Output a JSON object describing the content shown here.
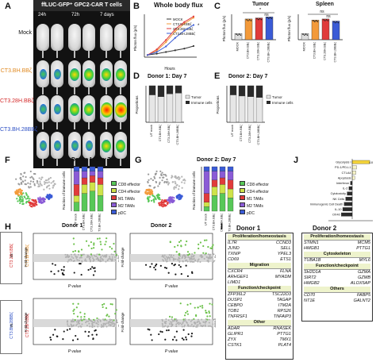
{
  "panels": {
    "A": {
      "label": "A",
      "title": "ffLUC-GFP⁺ GPC2-CAR T cells",
      "timepoints": [
        "24h",
        "72h",
        "7 days"
      ],
      "rows": [
        "Mock",
        "CT3.BH.BBζ",
        "CT3.28H.BBζ",
        "CT3.BH.28BBζ"
      ]
    },
    "B": {
      "label": "B",
      "title": "Whole body flux",
      "ylabel": "Photon flux (p/s)",
      "xlabel": "Hours"
    },
    "C": {
      "label": "C",
      "tumor_title": "Tumor",
      "spleen_title": "Spleen",
      "ylabel": "Photon flux (p/s)",
      "ns1": "ns",
      "ns2": "ns",
      "ns3": "ns",
      "star": "*"
    },
    "D": {
      "label": "D",
      "title": "Donor 1: Day 7",
      "ylabel": "Proportions",
      "legend": [
        "Tumor",
        "Immune cells"
      ]
    },
    "E": {
      "label": "E",
      "title": "Donor 2: Day 7",
      "ylabel": "Proportions",
      "legend": [
        "Tumor",
        "Immune cells"
      ]
    },
    "F": {
      "label": "F",
      "title": "Donor 1: Day 7",
      "ylabel": "Fraction of immune cells",
      "legend": [
        "CD8 effector",
        "CD4 effector",
        "M1 TAMs",
        "M2 TAMs",
        "pDC"
      ]
    },
    "G": {
      "label": "G",
      "title": "Donor 2: Day 7",
      "ylabel": "Fraction of immune cells",
      "legend": [
        "CD8 effector",
        "CD4 effector",
        "M1 TAMs",
        "M2 TAMs",
        "pDC"
      ]
    },
    "H": {
      "label": "H",
      "donor1": "Donor 1",
      "donor2": "Donor 2",
      "ylabel": "Fold-change",
      "xlabel": "P value",
      "row1_left": "CT3.28H.BBζ",
      "row1_vs": "vs",
      "row1_right": "CT3.BH.BBζ",
      "row2_left": "CT3.BH.28BBζ",
      "row2_vs": "vs",
      "row2_right": "CT3.28H.BBζ"
    },
    "I": {
      "label": "I",
      "donor1": "Donor 1",
      "donor2": "Donor 2"
    },
    "J": {
      "label": "J",
      "xlabel": "Z-score",
      "terms": [
        "Glycolysis I",
        "PD-1/PD-L1",
        "CTLA4",
        "Apoptosis",
        "Interferon",
        "IL-2",
        "Cytotoxicity",
        "NK Cells",
        "Immunogenic Cell Death",
        "IL-10",
        "OX40"
      ]
    }
  },
  "chart_data": [
    {
      "type": "line",
      "panel": "B",
      "title": "Whole body flux",
      "xlabel": "Hours",
      "ylabel": "Photon flux (p/s)",
      "series": [
        {
          "name": "MOCK",
          "color": "#333333"
        },
        {
          "name": "CT3.BH.BBζ",
          "color": "#f39a3a"
        },
        {
          "name": "CT3.28H.BBζ",
          "color": "#e03b3b"
        },
        {
          "name": "CT3.BH.28BBζ",
          "color": "#3a5bd6"
        }
      ]
    },
    {
      "type": "bar",
      "panel": "C-Tumor",
      "categories": [
        "MOCK",
        "CT3.BH.BBζ",
        "CT3.28H.BBζ",
        "CT3.BH.28BBζ"
      ],
      "colors": [
        "#dddddd",
        "#f39a3a",
        "#e03b3b",
        "#3a5bd6"
      ],
      "values": [
        0.3,
        1.0,
        1.05,
        1.1
      ]
    },
    {
      "type": "bar",
      "panel": "C-Spleen",
      "categories": [
        "MOCK",
        "CT3.BH.BBζ",
        "CT3.28H.BBζ",
        "CT3.BH.28BBζ"
      ],
      "colors": [
        "#dddddd",
        "#f39a3a",
        "#e03b3b",
        "#3a5bd6"
      ],
      "values": [
        0.3,
        0.95,
        1.0,
        0.9
      ]
    },
    {
      "type": "bar",
      "panel": "D",
      "categories": [
        "UT mock",
        "CT3.BH.BBζ",
        "CT3.28H.BBζ",
        "CT3.BH.28BBζ"
      ],
      "series": [
        {
          "name": "Tumor",
          "values": [
            0.75,
            0.7,
            0.78,
            0.8
          ]
        },
        {
          "name": "Immune cells",
          "values": [
            0.25,
            0.3,
            0.22,
            0.2
          ]
        }
      ]
    },
    {
      "type": "bar",
      "panel": "E",
      "categories": [
        "UT mock",
        "CT3.BH.BBζ",
        "CT3.28H.BBζ",
        "CT3.BH.28BBζ"
      ],
      "series": [
        {
          "name": "Tumor",
          "values": [
            0.75,
            0.72,
            0.7,
            0.68
          ]
        },
        {
          "name": "Immune cells",
          "values": [
            0.25,
            0.28,
            0.3,
            0.32
          ]
        }
      ]
    },
    {
      "type": "bar",
      "panel": "J",
      "categories": [
        "Glycolysis I",
        "PD-1/PD-L1",
        "CTLA4",
        "Apoptosis",
        "Interferon",
        "IL-2",
        "Cytotoxicity",
        "NK Cells",
        "Immunogenic Cell Death",
        "IL-10",
        "OX40"
      ],
      "values": [
        4.8,
        1.2,
        1.0,
        0.7,
        -0.5,
        -0.9,
        -1.4,
        -1.8,
        -2.2,
        -2.6,
        -3.0
      ]
    }
  ],
  "genes": {
    "d1": [
      {
        "head": "Proliferation/homeostasis",
        "rows": [
          [
            "IL7R",
            "CCND3"
          ],
          [
            "JUND",
            "SELL"
          ],
          [
            "TXNIP",
            "YPEL3"
          ],
          [
            "CD69",
            "ETS1"
          ]
        ]
      },
      {
        "head": "Migration",
        "rows": [
          [
            "CXCR4",
            "FLNA"
          ],
          [
            "ARHGEF1",
            "MYADM"
          ],
          [
            "LIMD1",
            ""
          ]
        ]
      },
      {
        "head": "Function/checkpoint",
        "rows": [
          [
            "ZFP36L2",
            "TSC22D3"
          ],
          [
            "DUSP1",
            "TAGAP"
          ],
          [
            "CEBPD",
            "ITM2A"
          ],
          [
            "TOB1",
            "RPS26"
          ],
          [
            "TNFRSF1",
            "TNFAIP3"
          ]
        ]
      },
      {
        "head": "Other",
        "rows": [
          [
            "ADAR",
            "RNASEK"
          ],
          [
            "GLIPR1",
            "PTTG1"
          ],
          [
            "ZYX",
            "TMX1"
          ],
          [
            "CSTK1",
            "PLAT4"
          ]
        ]
      }
    ],
    "d2": [
      {
        "head": "Proliferation/homeostasis",
        "rows": [
          [
            "STMN1",
            "MCM5"
          ],
          [
            "HMGB1",
            "PTTG1"
          ]
        ]
      },
      {
        "head": "Cytoskeleton",
        "rows": [
          [
            "TUBA1B",
            "MYL6"
          ]
        ]
      },
      {
        "head": "Function/checkpoint",
        "rows": [
          [
            "SH2D1A",
            "GZMA"
          ],
          [
            "SIRT2",
            "GZMB"
          ],
          [
            "HMGB2",
            "ALOX5AP"
          ]
        ]
      },
      {
        "head": "Others",
        "rows": [
          [
            "CD70",
            "FABP5"
          ],
          [
            "NT1E",
            "GALNT2"
          ]
        ]
      }
    ]
  }
}
